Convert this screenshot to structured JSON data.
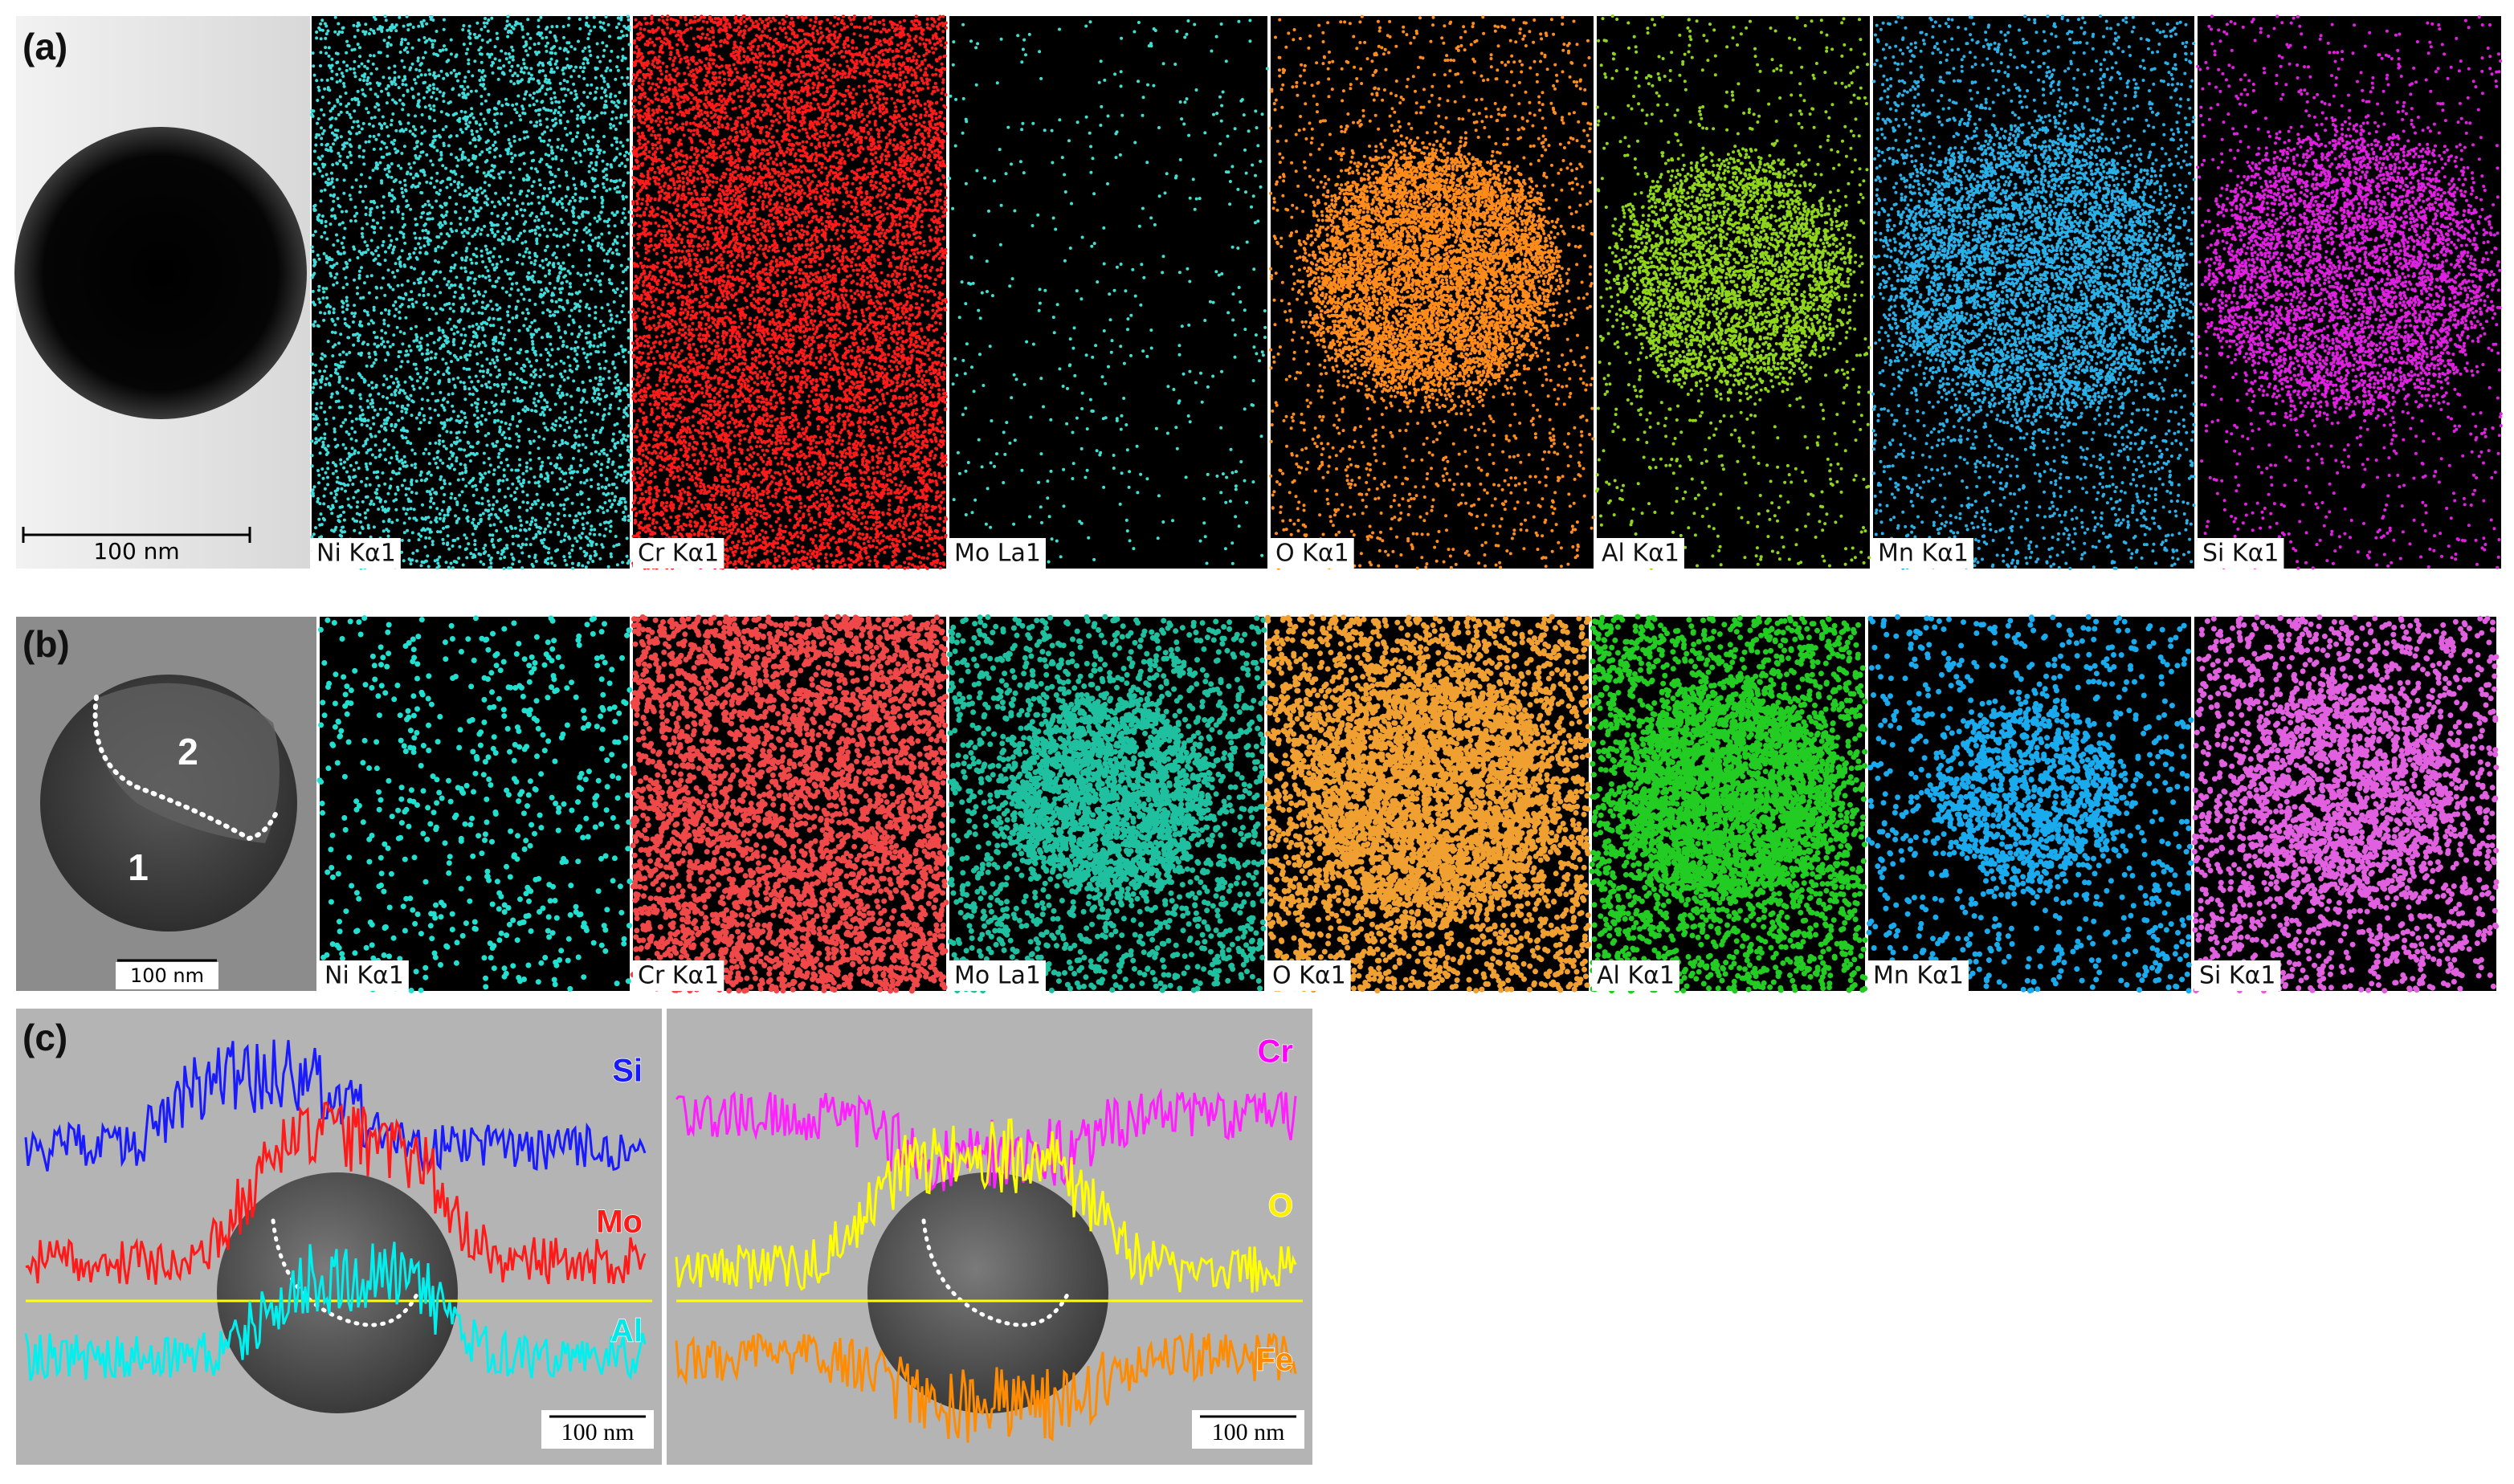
{
  "panel_a": {
    "label": "(a)",
    "scale_bar": "100 nm",
    "maps": [
      "Ni Kα1",
      "Cr Kα1",
      "Mo La1",
      "O Kα1",
      "Al Kα1",
      "Mn Kα1",
      "Si Kα1"
    ]
  },
  "panel_b": {
    "label": "(b)",
    "regions": [
      "2",
      "1"
    ],
    "scale_bar": "100 nm",
    "maps": [
      "Ni Kα1",
      "Cr Kα1",
      "Mo La1",
      "O Kα1",
      "Al Kα1",
      "Mn Kα1",
      "Si Kα1"
    ]
  },
  "panel_c": {
    "label": "(c)",
    "left": {
      "elements": [
        "Si",
        "Mo",
        "Al"
      ],
      "scale_bar": "100 nm"
    },
    "right": {
      "elements": [
        "Cr",
        "O",
        "Fe"
      ],
      "scale_bar": "100 nm"
    }
  }
}
